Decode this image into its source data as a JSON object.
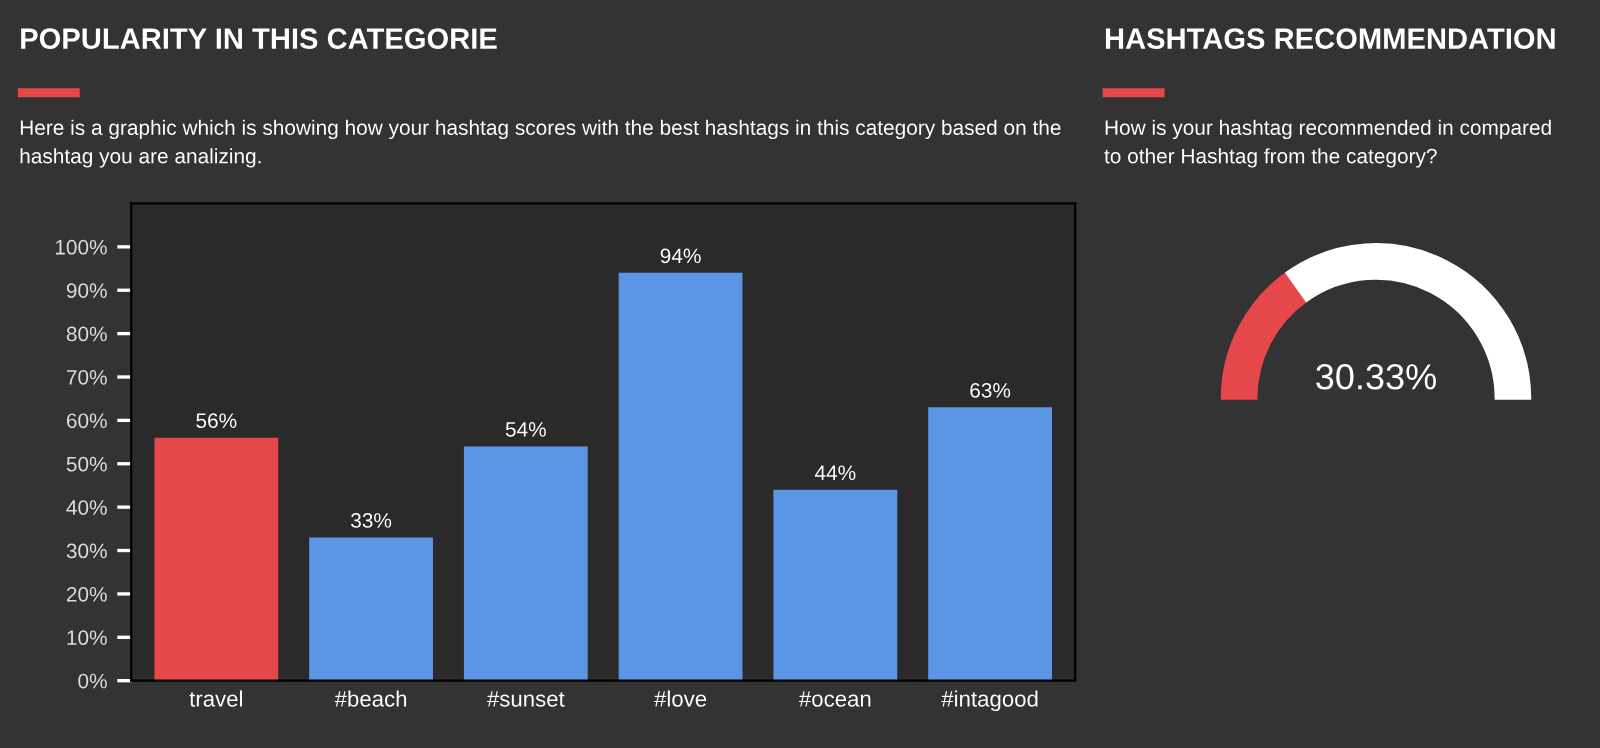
{
  "chart_data": [
    {
      "type": "bar",
      "title": "POPULARITY IN THIS CATEGORIE",
      "subtitle": "Here is a graphic which is showing how your hashtag scores with the best hashtags in this category based on the hashtag you are analizing.",
      "categories": [
        "travel",
        "#beach",
        "#sunset",
        "#love",
        "#ocean",
        "#intagood"
      ],
      "values": [
        56,
        33,
        54,
        94,
        44,
        63
      ],
      "colors": [
        "#e5474b",
        "#5b96e5",
        "#5b96e5",
        "#5b96e5",
        "#5b96e5",
        "#5b96e5"
      ],
      "value_labels": [
        "56%",
        "33%",
        "54%",
        "94%",
        "44%",
        "63%"
      ],
      "ylim": [
        0,
        110
      ],
      "yticks": [
        {
          "value": 0,
          "label": "0%"
        },
        {
          "value": 10,
          "label": "10%"
        },
        {
          "value": 20,
          "label": "20%"
        },
        {
          "value": 30,
          "label": "30%"
        },
        {
          "value": 40,
          "label": "40%"
        },
        {
          "value": 50,
          "label": "50%"
        },
        {
          "value": 60,
          "label": "60%"
        },
        {
          "value": 70,
          "label": "70%"
        },
        {
          "value": 80,
          "label": "80%"
        },
        {
          "value": 90,
          "label": "90%"
        },
        {
          "value": 100,
          "label": "100%"
        }
      ],
      "grid": false,
      "legend": false
    },
    {
      "type": "donut",
      "title": "HASHTAGS RECOMMENDATION",
      "subtitle": "How is your hashtag recommended in compared to other Hashtag from the category?",
      "categories": [
        null,
        null
      ],
      "values": [
        30.33,
        69.67
      ],
      "colors": [
        "#e5474b",
        "#ffffff"
      ],
      "annotations": [
        "30.33%"
      ],
      "legend": false
    }
  ]
}
